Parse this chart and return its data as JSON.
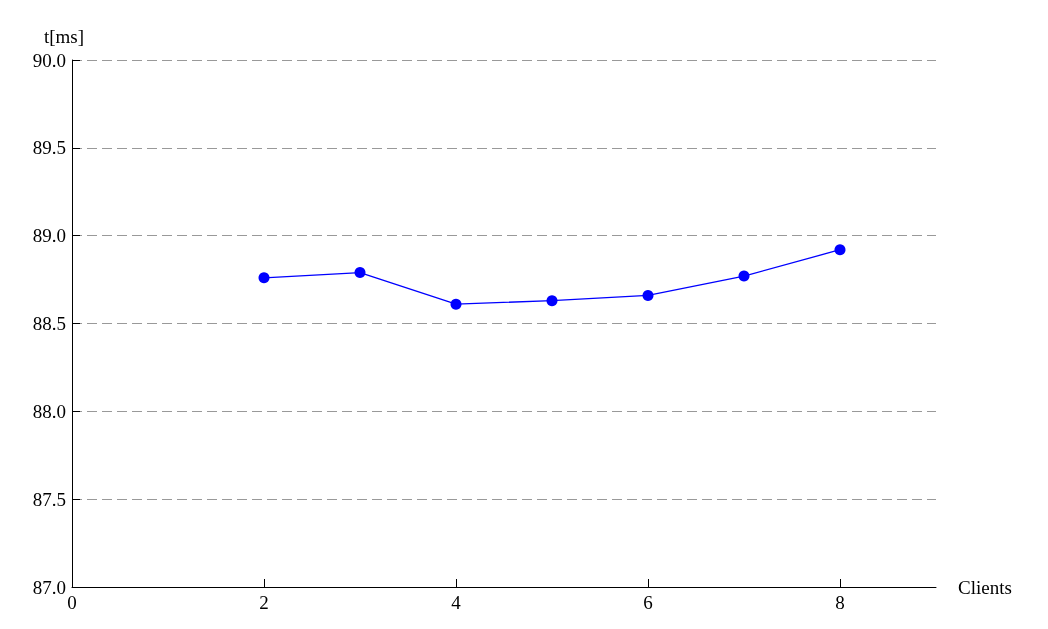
{
  "chart_data": {
    "type": "line",
    "xlabel": "Clients",
    "ylabel": "t[ms]",
    "x": [
      2,
      3,
      4,
      5,
      6,
      7,
      8
    ],
    "series": [
      {
        "color": "#0000ff",
        "values": [
          88.76,
          88.79,
          88.61,
          88.63,
          88.66,
          88.77,
          88.92
        ]
      }
    ],
    "xlim": [
      0,
      9
    ],
    "xticks": [
      0,
      2,
      4,
      6,
      8
    ],
    "ylim": [
      87,
      90
    ],
    "yticks": [
      {
        "value": 87,
        "label": "87.0"
      },
      {
        "value": 87.5,
        "label": "87.5"
      },
      {
        "value": 88,
        "label": "88.0"
      },
      {
        "value": 88.5,
        "label": "88.5"
      },
      {
        "value": 89,
        "label": "89.0"
      },
      {
        "value": 89.5,
        "label": "89.5"
      },
      {
        "value": 90,
        "label": "90.0"
      }
    ],
    "grid": "y",
    "marker": "circle",
    "line_style": "solid"
  }
}
